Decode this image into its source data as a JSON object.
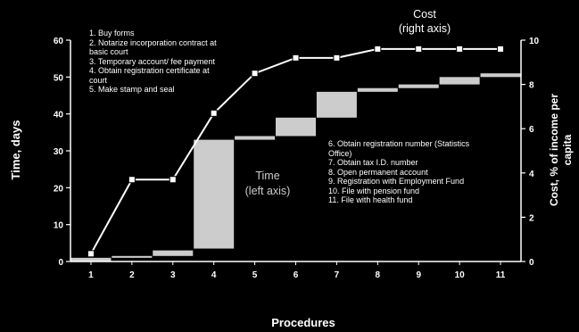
{
  "chart_data": {
    "type": "line",
    "xlabel": "Procedures",
    "ylabel_left": "Time, days",
    "ylabel_right": "Cost, % of income per capita",
    "categories": [
      "1",
      "2",
      "3",
      "4",
      "5",
      "6",
      "7",
      "8",
      "9",
      "10",
      "11"
    ],
    "ylim_left": [
      0,
      60
    ],
    "ylim_right": [
      0,
      10
    ],
    "yticks_left": [
      "0",
      "10",
      "20",
      "30",
      "40",
      "50",
      "60"
    ],
    "yticks_right": [
      "0",
      "2",
      "4",
      "6",
      "8",
      "10"
    ],
    "time_steps": [
      {
        "procedure": "1",
        "from": 0,
        "to": 1
      },
      {
        "procedure": "2",
        "from": 1,
        "to": 1.5
      },
      {
        "procedure": "3",
        "from": 1.5,
        "to": 3
      },
      {
        "procedure": "4",
        "from": 3.5,
        "to": 33
      },
      {
        "procedure": "5",
        "from": 33,
        "to": 34
      },
      {
        "procedure": "6",
        "from": 34,
        "to": 39
      },
      {
        "procedure": "7",
        "from": 39,
        "to": 46
      },
      {
        "procedure": "8",
        "from": 46,
        "to": 47
      },
      {
        "procedure": "9",
        "from": 47,
        "to": 48
      },
      {
        "procedure": "10",
        "from": 48,
        "to": 50
      },
      {
        "procedure": "11",
        "from": 50,
        "to": 51
      }
    ],
    "cost_series": {
      "name": "Cost",
      "values": [
        0.35,
        3.7,
        3.7,
        6.7,
        8.5,
        9.2,
        9.2,
        9.6,
        9.6,
        9.6,
        9.6
      ]
    },
    "annotations": {
      "cost_label": [
        "Cost",
        "(right axis)"
      ],
      "time_label": [
        "Time",
        "(left axis)"
      ],
      "procedures_top": [
        "1. Buy forms",
        "2. Notarize incorporation contract at",
        "basic court",
        "3. Temporary account/ fee payment",
        "4. Obtain registration certificate at",
        "court",
        "5. Make stamp and seal"
      ],
      "procedures_bottom": [
        "6. Obtain registration number (Statistics",
        "Office)",
        "7. Obtain tax I.D. number",
        "8. Open permanent account",
        "9. Registration with Employment Fund",
        "10. File with pension fund",
        "11. File with health fund"
      ]
    },
    "colors": {
      "background": "#000000",
      "axes": "#ffffff",
      "bars": "#cccccc",
      "line": "#ffffff",
      "marker_fill": "#ffffff",
      "marker_edge": "#000000"
    }
  }
}
